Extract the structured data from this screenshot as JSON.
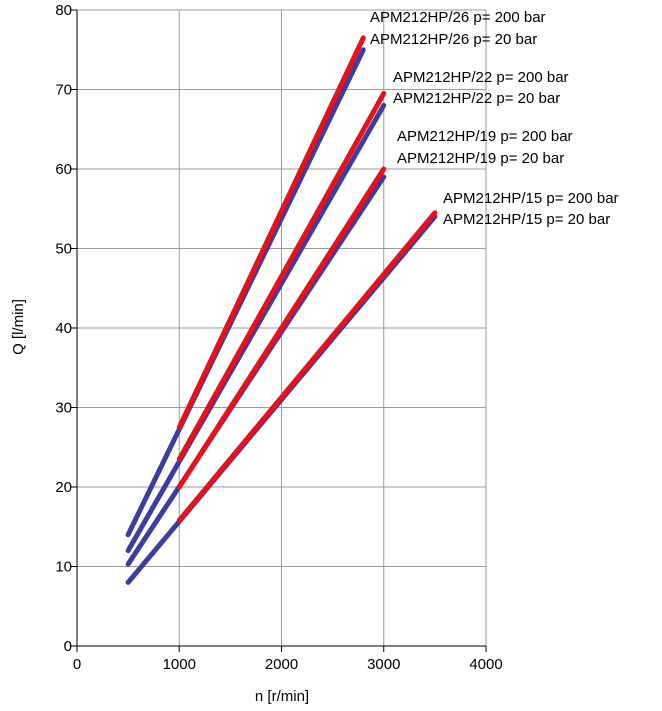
{
  "chart_data": {
    "type": "line",
    "xlabel": "n [r/min]",
    "ylabel": "Q [l/min]",
    "xlim": [
      0,
      4000
    ],
    "ylim": [
      0,
      80
    ],
    "x_ticks": [
      "0",
      "1000",
      "2000",
      "3000",
      "4000"
    ],
    "y_ticks": [
      "0",
      "10",
      "20",
      "30",
      "40",
      "50",
      "60",
      "70",
      "80"
    ],
    "grid": true,
    "colors": {
      "p20": "#3b3da0",
      "p200": "#e8101a"
    },
    "series": [
      {
        "name": "APM212HP/26 p= 200 bar",
        "color": "#e8101a",
        "x": [
          1000,
          2800
        ],
        "y": [
          27.5,
          76.5
        ]
      },
      {
        "name": "APM212HP/26 p= 20 bar",
        "color": "#3b3da0",
        "x": [
          500,
          2800
        ],
        "y": [
          14.0,
          75.0
        ]
      },
      {
        "name": "APM212HP/22 p= 200 bar",
        "color": "#e8101a",
        "x": [
          1000,
          3000
        ],
        "y": [
          23.5,
          69.5
        ]
      },
      {
        "name": "APM212HP/22 p= 20 bar",
        "color": "#3b3da0",
        "x": [
          500,
          3000
        ],
        "y": [
          12.0,
          68.0
        ]
      },
      {
        "name": "APM212HP/19 p= 200 bar",
        "color": "#e8101a",
        "x": [
          1000,
          3000
        ],
        "y": [
          20.0,
          60.0
        ]
      },
      {
        "name": "APM212HP/19 p= 20 bar",
        "color": "#3b3da0",
        "x": [
          500,
          3000
        ],
        "y": [
          10.3,
          59.0
        ]
      },
      {
        "name": "APM212HP/15 p= 200 bar",
        "color": "#e8101a",
        "x": [
          1000,
          3500
        ],
        "y": [
          15.8,
          54.5
        ]
      },
      {
        "name": "APM212HP/15 p= 20 bar",
        "color": "#3b3da0",
        "x": [
          500,
          3500
        ],
        "y": [
          8.0,
          54.0
        ]
      }
    ]
  }
}
